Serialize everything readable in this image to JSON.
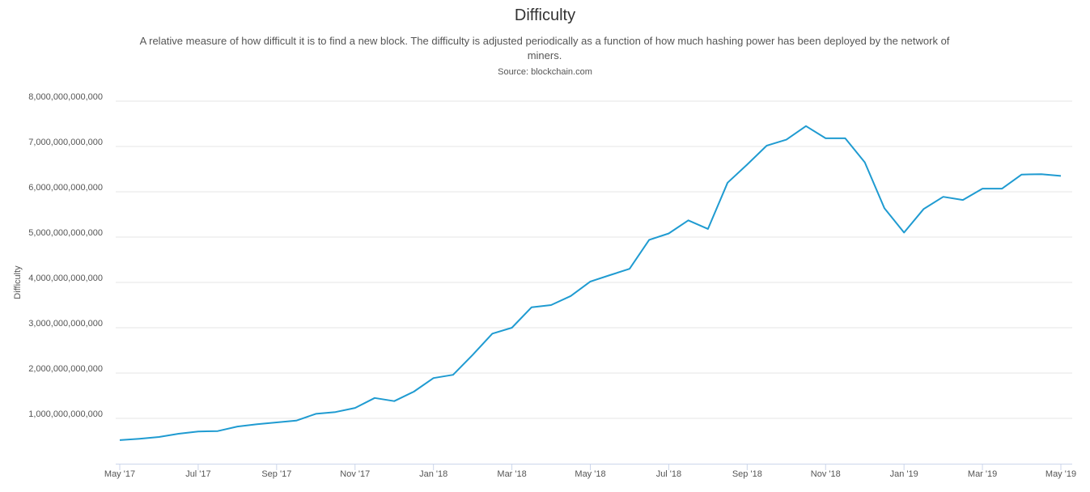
{
  "chart_data": {
    "type": "line",
    "title": "Difficulty",
    "subtitle": "A relative measure of how difficult it is to find a new block. The difficulty is adjusted periodically as a function of how much hashing power has been deployed by the network of miners.",
    "source": "Source: blockchain.com",
    "y_label": "Difficulty",
    "categories": [
      "May '17",
      null,
      null,
      null,
      "Jul '17",
      null,
      null,
      null,
      "Sep '17",
      null,
      null,
      null,
      "Nov '17",
      null,
      null,
      null,
      "Jan '18",
      null,
      null,
      null,
      "Mar '18",
      null,
      null,
      null,
      "May '18",
      null,
      null,
      null,
      "Jul '18",
      null,
      null,
      null,
      "Sep '18",
      null,
      null,
      null,
      "Nov '18",
      null,
      null,
      null,
      "Jan '19",
      null,
      null,
      null,
      "Mar '19",
      null,
      null,
      null,
      "May '19"
    ],
    "values": [
      520000000000,
      550000000000,
      590000000000,
      660000000000,
      710000000000,
      720000000000,
      820000000000,
      870000000000,
      910000000000,
      950000000000,
      1100000000000,
      1140000000000,
      1230000000000,
      1450000000000,
      1380000000000,
      1590000000000,
      1890000000000,
      1960000000000,
      2400000000000,
      2870000000000,
      3000000000000,
      3450000000000,
      3500000000000,
      3700000000000,
      4020000000000,
      4160000000000,
      4300000000000,
      4940000000000,
      5080000000000,
      5370000000000,
      5180000000000,
      6200000000000,
      6600000000000,
      7020000000000,
      7150000000000,
      7450000000000,
      7180000000000,
      7180000000000,
      6650000000000,
      5640000000000,
      5100000000000,
      5620000000000,
      5890000000000,
      5820000000000,
      6070000000000,
      6070000000000,
      6380000000000,
      6390000000000,
      6350000000000
    ],
    "color": "#1f9bd1",
    "ylim": [
      0,
      8000000000000
    ],
    "yticks": [
      {
        "value": 1000000000000,
        "label": "1,000,000,000,000"
      },
      {
        "value": 2000000000000,
        "label": "2,000,000,000,000"
      },
      {
        "value": 3000000000000,
        "label": "3,000,000,000,000"
      },
      {
        "value": 4000000000000,
        "label": "4,000,000,000,000"
      },
      {
        "value": 5000000000000,
        "label": "5,000,000,000,000"
      },
      {
        "value": 6000000000000,
        "label": "6,000,000,000,000"
      },
      {
        "value": 7000000000000,
        "label": "7,000,000,000,000"
      },
      {
        "value": 8000000000000,
        "label": "8,000,000,000,000"
      }
    ],
    "grid": true
  }
}
